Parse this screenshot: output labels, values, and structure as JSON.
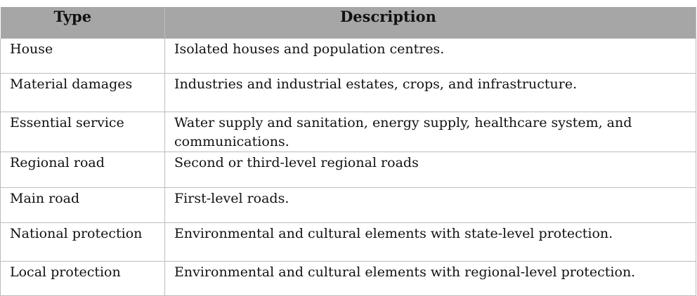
{
  "table": {
    "headers": {
      "type": "Type",
      "description": "Description"
    },
    "rows": [
      {
        "type": "House",
        "description": "Isolated houses and population centres."
      },
      {
        "type": "Material damages",
        "description": "Industries and industrial estates, crops, and infrastructure."
      },
      {
        "type": "Essential service",
        "description": "Water supply and sanitation, energy supply, healthcare system, and communications."
      },
      {
        "type": "Regional road",
        "description": "Second or third-level regional roads"
      },
      {
        "type": "Main road",
        "description": "First-level roads."
      },
      {
        "type": "National protection",
        "description": "Environmental and cultural elements with state-level protection."
      },
      {
        "type": "Local protection",
        "description": "Environmental and cultural elements with regional-level protection."
      }
    ]
  }
}
